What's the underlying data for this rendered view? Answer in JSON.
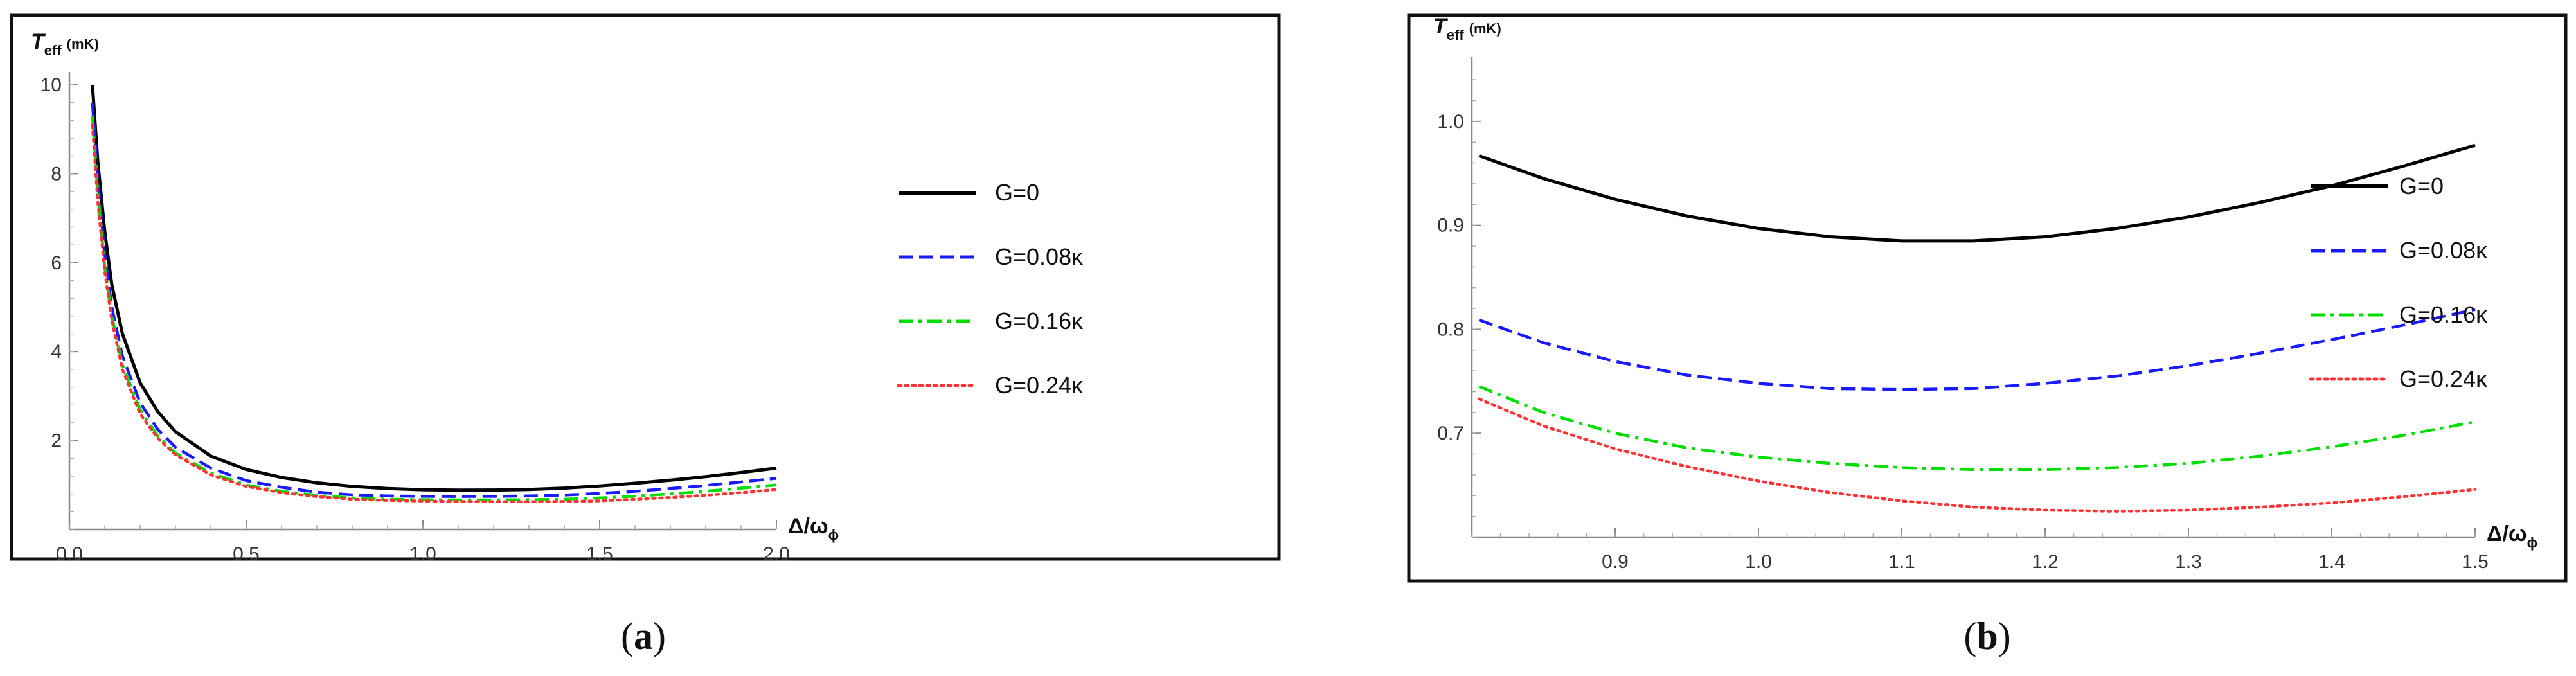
{
  "chart_data": [
    {
      "id": "a",
      "type": "line",
      "caption_paren_open": "(",
      "caption_letter": "a",
      "caption_paren_close": ")",
      "ylabel_main": "T",
      "ylabel_sub": "eff",
      "ylabel_unit": "(mK)",
      "xlabel_main": "Δ/ω",
      "xlabel_sub": "ϕ",
      "xlim": [
        0,
        2.0
      ],
      "ylim": [
        0,
        10
      ],
      "xticks": [
        0.0,
        0.5,
        1.0,
        1.5,
        2.0
      ],
      "xtick_labels": [
        "0.0",
        "0.5",
        "1.0",
        "1.5",
        "2.0"
      ],
      "yticks": [
        2,
        4,
        6,
        8,
        10
      ],
      "ytick_labels": [
        "2",
        "4",
        "6",
        "8",
        "10"
      ],
      "x": [
        0.065,
        0.08,
        0.1,
        0.12,
        0.15,
        0.2,
        0.25,
        0.3,
        0.4,
        0.5,
        0.6,
        0.7,
        0.8,
        0.9,
        1.0,
        1.1,
        1.2,
        1.3,
        1.4,
        1.5,
        1.6,
        1.7,
        1.8,
        1.9,
        2.0
      ],
      "series": [
        {
          "name": "G=0",
          "color": "#000000",
          "dash": "solid",
          "values": [
            10.0,
            8.3,
            6.7,
            5.5,
            4.4,
            3.3,
            2.65,
            2.2,
            1.65,
            1.35,
            1.17,
            1.05,
            0.97,
            0.92,
            0.895,
            0.886,
            0.888,
            0.9,
            0.93,
            0.98,
            1.04,
            1.11,
            1.19,
            1.28,
            1.38
          ]
        },
        {
          "name": "G=0.08κ",
          "color": "#1a1aff",
          "dash": "dashed",
          "values": [
            9.6,
            7.9,
            6.2,
            5.0,
            3.9,
            2.85,
            2.25,
            1.85,
            1.38,
            1.1,
            0.95,
            0.84,
            0.78,
            0.755,
            0.745,
            0.742,
            0.745,
            0.755,
            0.775,
            0.81,
            0.86,
            0.92,
            0.99,
            1.07,
            1.15
          ]
        },
        {
          "name": "G=0.16κ",
          "color": "#00dd00",
          "dash": "dashdot",
          "values": [
            9.3,
            7.6,
            5.9,
            4.8,
            3.7,
            2.7,
            2.1,
            1.72,
            1.27,
            1.0,
            0.86,
            0.77,
            0.71,
            0.68,
            0.67,
            0.665,
            0.665,
            0.67,
            0.68,
            0.71,
            0.75,
            0.8,
            0.86,
            0.93,
            1.0
          ]
        },
        {
          "name": "G=0.24κ",
          "color": "#ff3333",
          "dash": "dotted",
          "values": [
            9.1,
            7.4,
            5.8,
            4.7,
            3.6,
            2.6,
            2.05,
            1.68,
            1.23,
            0.97,
            0.83,
            0.74,
            0.68,
            0.655,
            0.64,
            0.63,
            0.625,
            0.625,
            0.63,
            0.645,
            0.68,
            0.72,
            0.77,
            0.83,
            0.9
          ]
        }
      ]
    },
    {
      "id": "b",
      "type": "line",
      "caption_paren_open": "(",
      "caption_letter": "b",
      "caption_paren_close": ")",
      "ylabel_main": "T",
      "ylabel_sub": "eff",
      "ylabel_unit": "(mK)",
      "xlabel_main": "Δ/ω",
      "xlabel_sub": "ϕ",
      "xlim": [
        0.8,
        1.5
      ],
      "ylim": [
        0.6,
        1.05
      ],
      "xticks": [
        0.9,
        1.0,
        1.1,
        1.2,
        1.3,
        1.4,
        1.5
      ],
      "xtick_labels": [
        "0.9",
        "1.0",
        "1.1",
        "1.2",
        "1.3",
        "1.4",
        "1.5"
      ],
      "yticks": [
        0.7,
        0.8,
        0.9,
        1.0
      ],
      "ytick_labels": [
        "0.7",
        "0.8",
        "0.9",
        "1.0"
      ],
      "x": [
        0.805,
        0.85,
        0.9,
        0.95,
        1.0,
        1.05,
        1.1,
        1.15,
        1.2,
        1.25,
        1.3,
        1.35,
        1.4,
        1.45,
        1.5
      ],
      "series": [
        {
          "name": "G=0",
          "color": "#000000",
          "dash": "solid",
          "values": [
            0.967,
            0.945,
            0.925,
            0.909,
            0.897,
            0.889,
            0.885,
            0.885,
            0.889,
            0.897,
            0.908,
            0.922,
            0.938,
            0.957,
            0.977
          ]
        },
        {
          "name": "G=0.08κ",
          "color": "#1a1aff",
          "dash": "dashed",
          "values": [
            0.809,
            0.787,
            0.769,
            0.756,
            0.748,
            0.743,
            0.742,
            0.743,
            0.748,
            0.755,
            0.765,
            0.777,
            0.79,
            0.804,
            0.819
          ]
        },
        {
          "name": "G=0.16κ",
          "color": "#00dd00",
          "dash": "dashdot",
          "values": [
            0.745,
            0.72,
            0.7,
            0.686,
            0.677,
            0.671,
            0.667,
            0.665,
            0.665,
            0.667,
            0.671,
            0.678,
            0.687,
            0.698,
            0.711
          ]
        },
        {
          "name": "G=0.24κ",
          "color": "#ff3333",
          "dash": "dotted",
          "values": [
            0.733,
            0.707,
            0.685,
            0.668,
            0.654,
            0.643,
            0.635,
            0.629,
            0.626,
            0.625,
            0.626,
            0.629,
            0.633,
            0.639,
            0.646
          ]
        }
      ]
    }
  ]
}
